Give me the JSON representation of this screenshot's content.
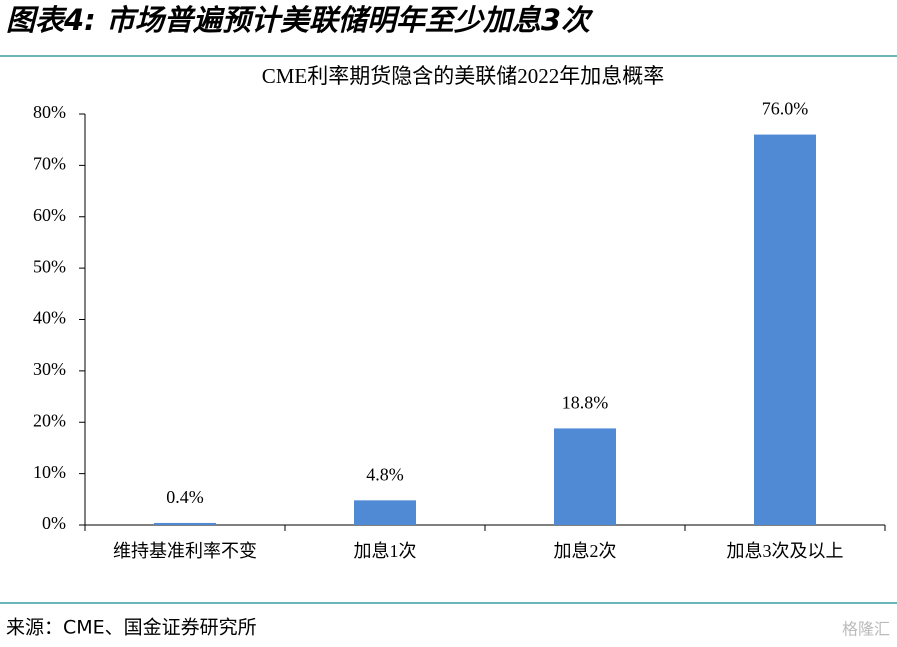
{
  "header": {
    "title": "图表4:  市场普遍预计美联储明年至少加息3次"
  },
  "chart_data": {
    "type": "bar",
    "title": "CME利率期货隐含的美联储2022年加息概率",
    "categories": [
      "维持基准利率不变",
      "加息1次",
      "加息2次",
      "加息3次及以上"
    ],
    "values": [
      0.4,
      4.8,
      18.8,
      76.0
    ],
    "value_labels": [
      "0.4%",
      "4.8%",
      "18.8%",
      "76.0%"
    ],
    "color": "#5089d4",
    "ylim": [
      0,
      80
    ],
    "yticks": [
      {
        "value": 0,
        "label": "0%"
      },
      {
        "value": 10,
        "label": "10%"
      },
      {
        "value": 20,
        "label": "20%"
      },
      {
        "value": 30,
        "label": "30%"
      },
      {
        "value": 40,
        "label": "40%"
      },
      {
        "value": 50,
        "label": "50%"
      },
      {
        "value": 60,
        "label": "60%"
      },
      {
        "value": 70,
        "label": "70%"
      },
      {
        "value": 80,
        "label": "80%"
      }
    ],
    "grid": false
  },
  "source": "来源：CME、国金证券研究所",
  "watermark": "格隆汇"
}
